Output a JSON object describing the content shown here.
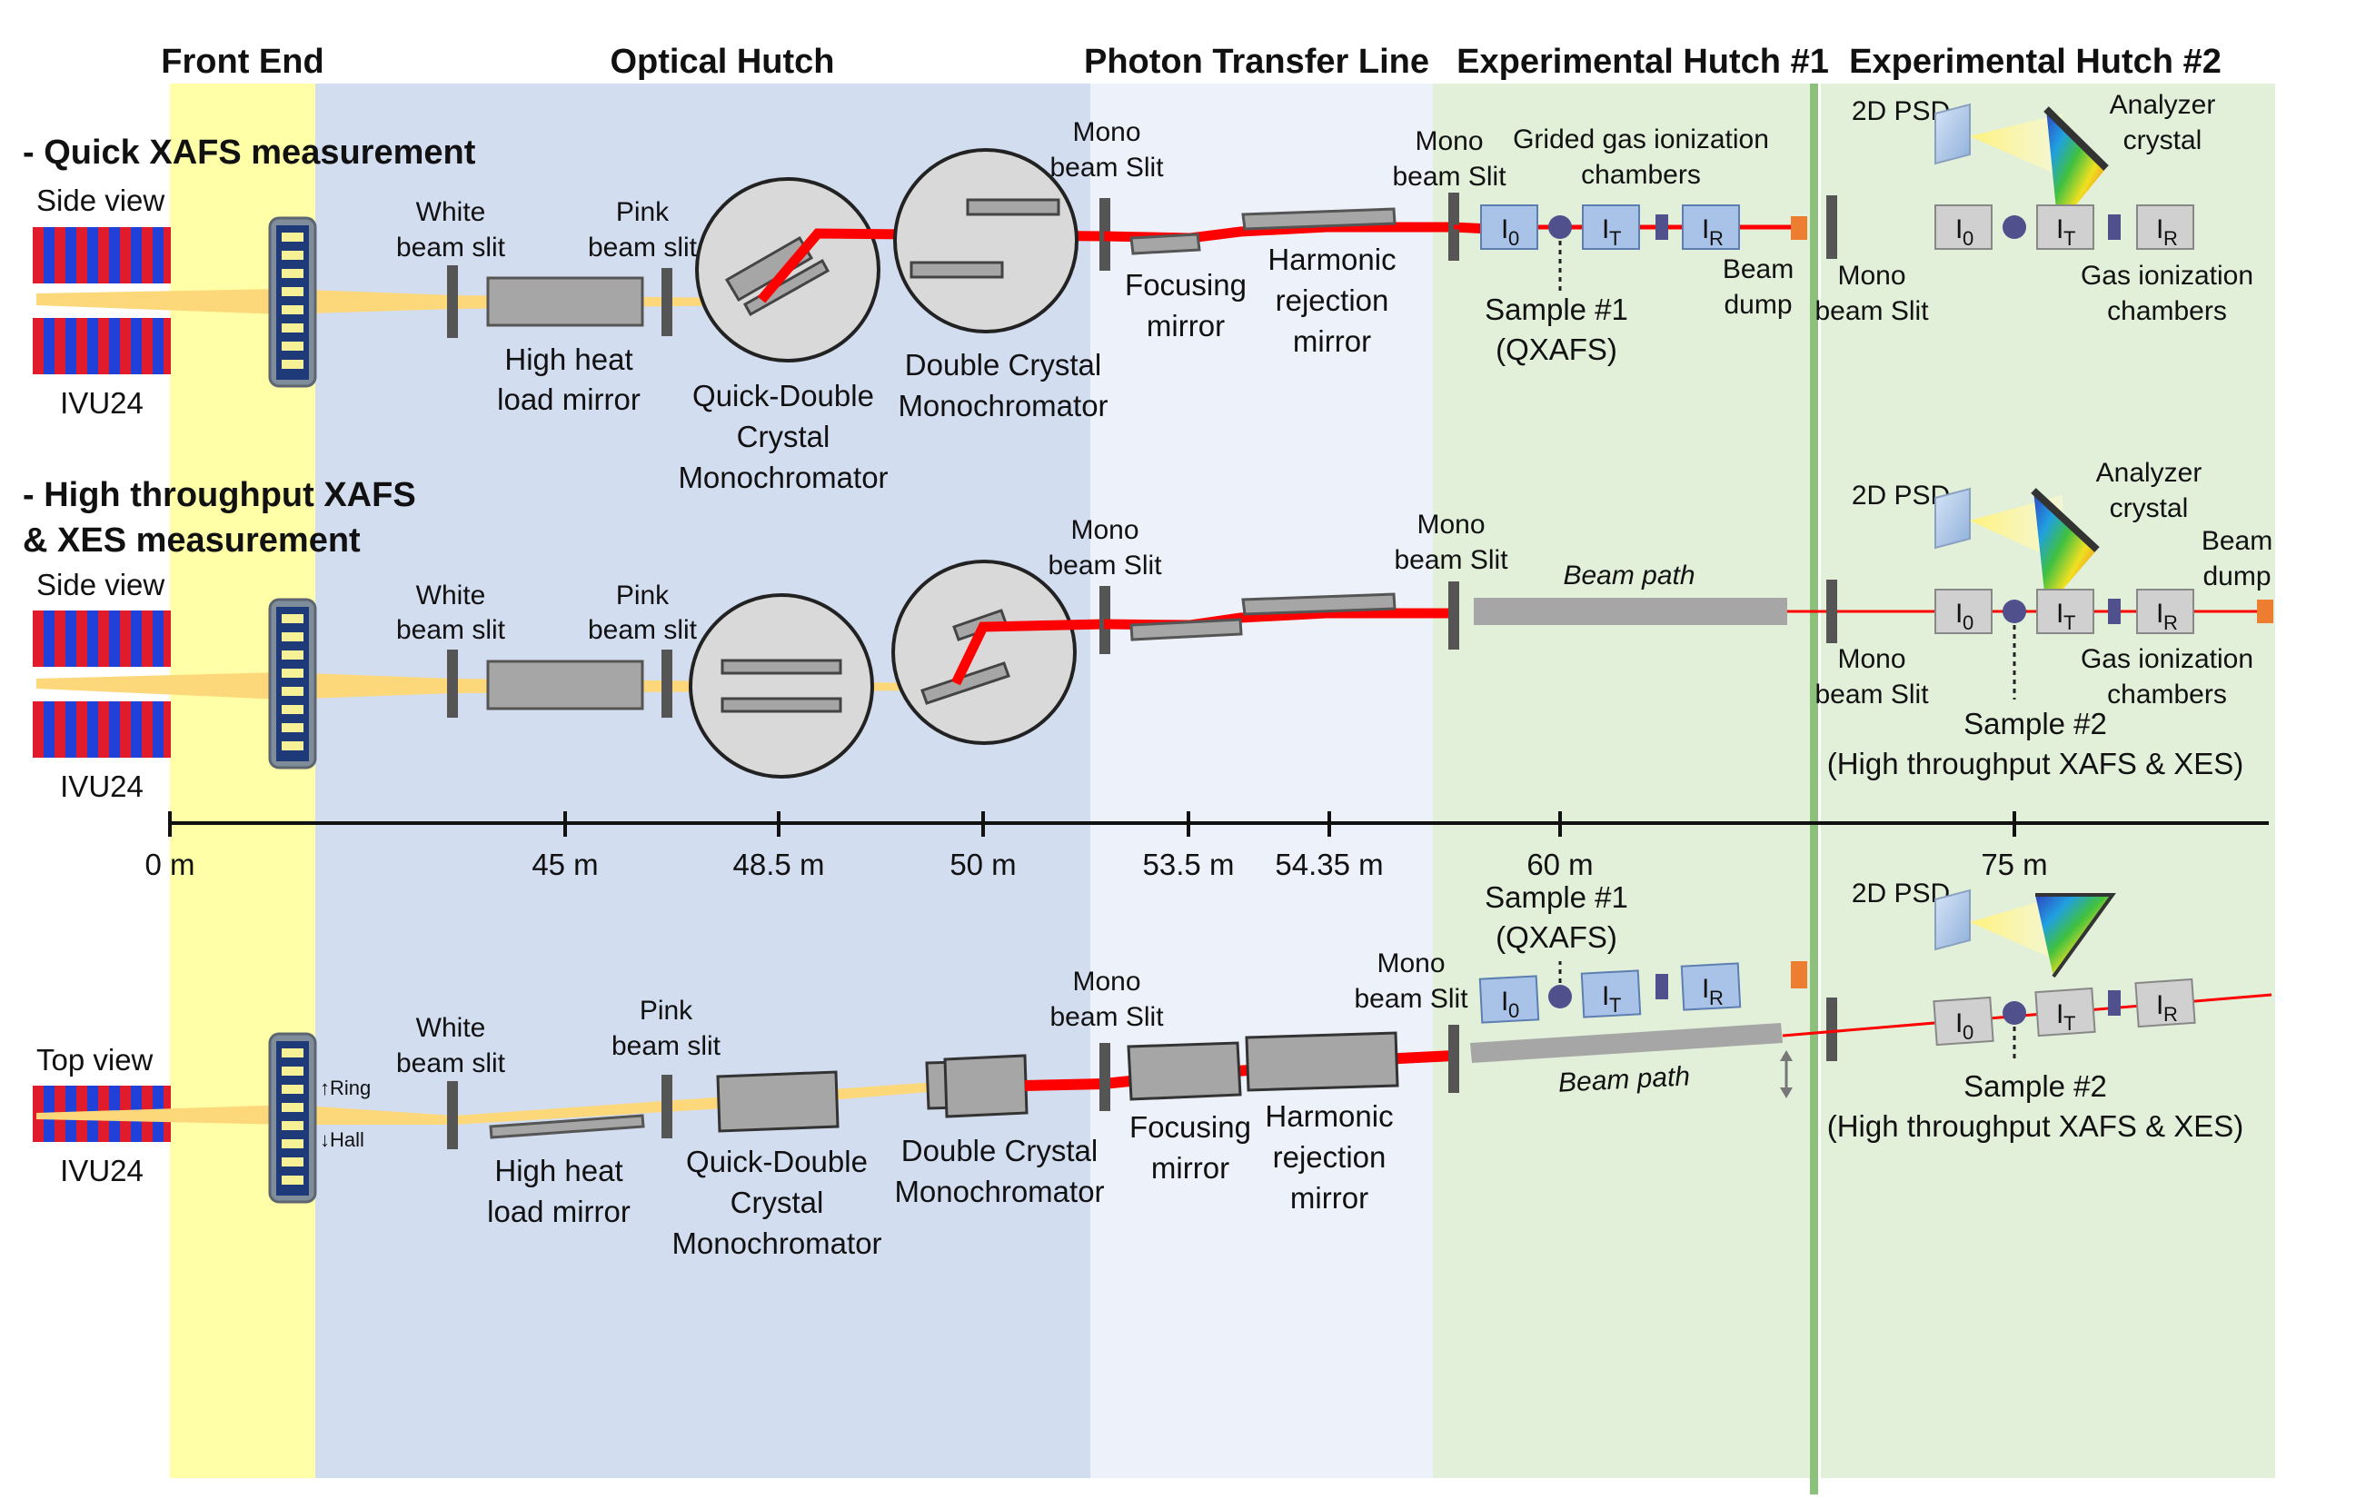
{
  "sections": {
    "front_end": "Front End",
    "optical_hutch": "Optical Hutch",
    "photon_transfer_line": "Photon Transfer Line",
    "exp_hutch_1": "Experimental Hutch #1",
    "exp_hutch_2": "Experimental Hutch #2"
  },
  "colors": {
    "front_end": "#ffffa8",
    "optical_hutch": "#d3ddf0",
    "photon_transfer_line": "#edf1f9",
    "exp_hutch": "#e2efd9",
    "beam_white": "#fdd87a",
    "beam_mono": "#ff0000",
    "component_gray": "#a6a6a6",
    "chamber_blue": "#a9c3e8"
  },
  "modes": {
    "quick": "- Quick XAFS measurement",
    "high_line1": "- High throughput XAFS",
    "high_line2": "& XES measurement"
  },
  "labels": {
    "side_view": "Side view",
    "top_view": "Top view",
    "source": "IVU24",
    "white_slit_1": "White",
    "white_slit_2": "beam slit",
    "pink_slit_1": "Pink",
    "pink_slit_2": "beam slit",
    "hhlm_1": "High heat",
    "hhlm_2": "load mirror",
    "qdcm_1": "Quick-Double",
    "qdcm_2": "Crystal",
    "qdcm_3": "Monochromator",
    "dcm_1": "Double Crystal",
    "dcm_2": "Monochromator",
    "mono_slit_1": "Mono",
    "mono_slit_2": "beam Slit",
    "focusing_1": "Focusing",
    "focusing_2": "mirror",
    "harmonic_1": "Harmonic",
    "harmonic_2": "rejection",
    "harmonic_3": "mirror",
    "grided_1": "Grided gas ionization",
    "grided_2": "chambers",
    "sample1_1": "Sample #1",
    "sample1_2": "(QXAFS)",
    "sample2_1": "Sample #2",
    "sample2_2": "(High throughput XAFS & XES)",
    "beam_dump_1": "Beam",
    "beam_dump_2": "dump",
    "psd": "2D PSD",
    "analyzer_1": "Analyzer",
    "analyzer_2": "crystal",
    "gas_1": "Gas ionization",
    "gas_2": "chambers",
    "beam_path": "Beam path",
    "ring": "↑Ring",
    "hall": "↓Hall",
    "i0": "I",
    "i0_sub": "0",
    "it": "I",
    "it_sub": "T",
    "ir": "I",
    "ir_sub": "R"
  },
  "axis": {
    "ticks": [
      "0 m",
      "45 m",
      "48.5 m",
      "50 m",
      "53.5 m",
      "54.35 m",
      "60 m",
      "75 m"
    ]
  }
}
